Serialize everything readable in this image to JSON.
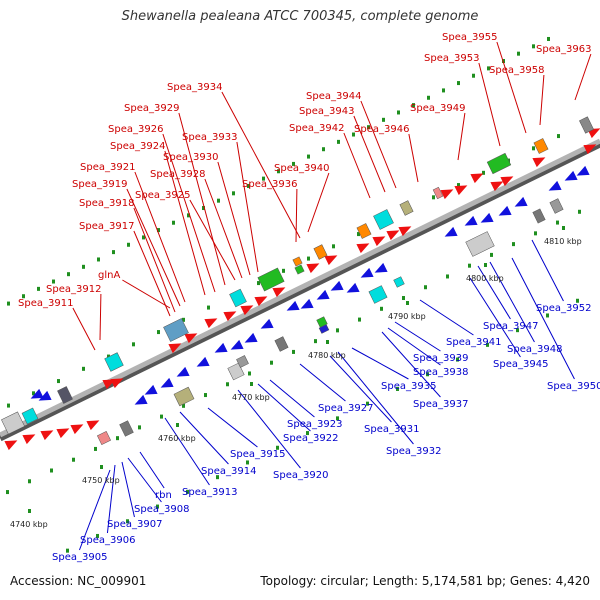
{
  "title": "Shewanella pealeana ATCC 700345, complete genome",
  "footer": {
    "accession": "Accession: NC_009901",
    "topology": "Topology: circular; Length: 5,174,581 bp; Genes: 4,420"
  },
  "colors": {
    "forward_label": "#cc0000",
    "reverse_label": "#0000cc",
    "forward_gene": "#ee1111",
    "reverse_gene": "#1111dd",
    "backbone": "#8c8c8c",
    "tick": "#1f8f1f"
  },
  "scale_labels": [
    "4740 kbp",
    "4750 kbp",
    "4760 kbp",
    "4770 kbp",
    "4780 kbp",
    "4790 kbp",
    "4800 kbp",
    "4810 kbp"
  ],
  "forward_labels": [
    "Spea_3911",
    "Spea_3912",
    "glnA",
    "Spea_3917",
    "Spea_3918",
    "Spea_3919",
    "Spea_3921",
    "Spea_3924",
    "Spea_3925",
    "Spea_3926",
    "Spea_3928",
    "Spea_3929",
    "Spea_3930",
    "Spea_3933",
    "Spea_3934",
    "Spea_3936",
    "Spea_3940",
    "Spea_3942",
    "Spea_3943",
    "Spea_3944",
    "Spea_3946",
    "Spea_3949",
    "Spea_3953",
    "Spea_3955",
    "Spea_3958",
    "Spea_3963"
  ],
  "reverse_labels": [
    "Spea_3905",
    "Spea_3906",
    "Spea_3907",
    "Spea_3908",
    "rbn",
    "Spea_3913",
    "Spea_3914",
    "Spea_3915",
    "Spea_3920",
    "Spea_3922",
    "Spea_3923",
    "Spea_3927",
    "Spea_3931",
    "Spea_3932",
    "Spea_3935",
    "Spea_3937",
    "Spea_3938",
    "Spea_3939",
    "Spea_3941",
    "Spea_3945",
    "Spea_3947",
    "Spea_3948",
    "Spea_3950",
    "Spea_3952"
  ]
}
